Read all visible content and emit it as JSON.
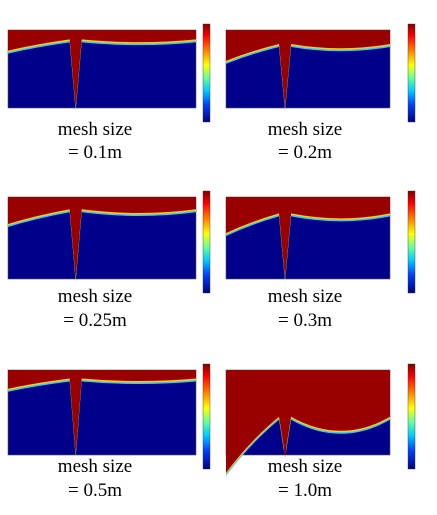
{
  "panels": [
    {
      "caption_line1": "mesh size",
      "caption_line2": "= 0.1m"
    },
    {
      "caption_line1": "mesh size",
      "caption_line2": "= 0.2m"
    },
    {
      "caption_line1": "mesh size",
      "caption_line2": "= 0.25m"
    },
    {
      "caption_line1": "mesh size",
      "caption_line2": "= 0.3m"
    },
    {
      "caption_line1": "mesh size",
      "caption_line2": "= 0.5m"
    },
    {
      "caption_line1": "mesh size",
      "caption_line2": "= 1.0m"
    }
  ]
}
